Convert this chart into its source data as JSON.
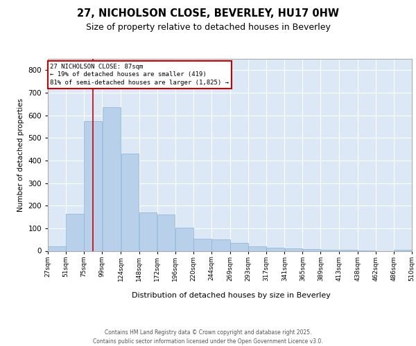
{
  "title": "27, NICHOLSON CLOSE, BEVERLEY, HU17 0HW",
  "subtitle": "Size of property relative to detached houses in Beverley",
  "xlabel": "Distribution of detached houses by size in Beverley",
  "ylabel": "Number of detached properties",
  "bar_color": "#b8d0ea",
  "bar_edge_color": "#8ab4d8",
  "background_color": "#dce8f5",
  "grid_color": "#ffffff",
  "vline_x": 87,
  "vline_color": "#cc0000",
  "annotation_text": "27 NICHOLSON CLOSE: 87sqm\n← 19% of detached houses are smaller (419)\n81% of semi-detached houses are larger (1,825) →",
  "footer_line1": "Contains HM Land Registry data © Crown copyright and database right 2025.",
  "footer_line2": "Contains public sector information licensed under the Open Government Licence v3.0.",
  "bin_edges": [
    27,
    51,
    75,
    99,
    124,
    148,
    172,
    196,
    220,
    244,
    269,
    293,
    317,
    341,
    365,
    389,
    413,
    438,
    462,
    486,
    510
  ],
  "bin_labels": [
    "27sqm",
    "51sqm",
    "75sqm",
    "99sqm",
    "124sqm",
    "148sqm",
    "172sqm",
    "196sqm",
    "220sqm",
    "244sqm",
    "269sqm",
    "293sqm",
    "317sqm",
    "341sqm",
    "365sqm",
    "389sqm",
    "413sqm",
    "438sqm",
    "462sqm",
    "486sqm",
    "510sqm"
  ],
  "counts": [
    20,
    165,
    575,
    635,
    430,
    170,
    160,
    102,
    55,
    50,
    35,
    20,
    15,
    10,
    8,
    5,
    5,
    2,
    0,
    5
  ],
  "ylim_max": 850,
  "yticks": [
    0,
    100,
    200,
    300,
    400,
    500,
    600,
    700,
    800
  ]
}
